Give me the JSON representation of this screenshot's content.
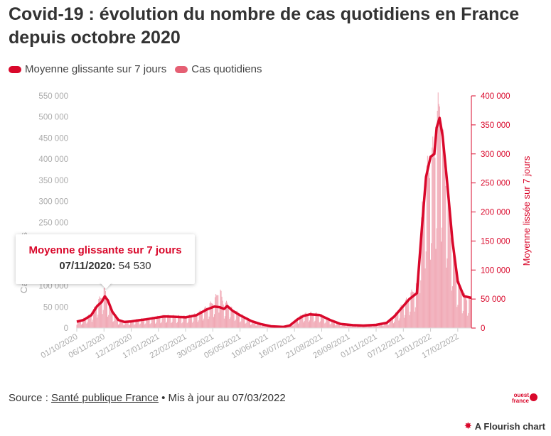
{
  "title": "Covid-19 : évolution du nombre de cas quotidiens en France depuis octobre 2020",
  "legend": {
    "moving_average": "Moyenne glissante sur 7 jours",
    "daily_cases": "Cas quotidiens"
  },
  "tooltip": {
    "series": "Moyenne glissante sur 7 jours",
    "date": "07/11/2020:",
    "value": "54 530"
  },
  "source": {
    "prefix": "Source : ",
    "link": "Santé publique France",
    "suffix": " • Mis à jour au 07/03/2022"
  },
  "logo": {
    "line1": "ouest",
    "line2": "france"
  },
  "credit": "A Flourish chart",
  "colors": {
    "line": "#d9082b",
    "bars": "#f0a5b2",
    "axis_right": "#d9082b",
    "axis_left": "#aaaaaa"
  },
  "chart_data": {
    "type": "bar",
    "x_dates": [
      "01/10/2020",
      "06/11/2020",
      "12/12/2020",
      "17/01/2021",
      "22/02/2021",
      "30/03/2021",
      "05/05/2021",
      "10/06/2021",
      "16/07/2021",
      "21/08/2021",
      "26/09/2021",
      "01/11/2021",
      "07/12/2021",
      "12/01/2022",
      "17/02/2022"
    ],
    "y_left": {
      "label": "Cas quotidiens",
      "range": [
        0,
        550000
      ],
      "ticks": [
        "0",
        "50 000",
        "100 000",
        "150 000",
        "200 000",
        "250 000",
        "300 000",
        "350 000",
        "400 000",
        "450 000",
        "500 000",
        "550 000"
      ]
    },
    "y_right": {
      "label": "Moyenne lissée sur 7 jours",
      "range": [
        0,
        400000
      ],
      "ticks": [
        "0",
        "50 000",
        "100 000",
        "150 000",
        "200 000",
        "250 000",
        "300 000",
        "350 000",
        "400 000"
      ]
    },
    "grid": false,
    "series": [
      {
        "name": "Moyenne glissante sur 7 jours",
        "type": "line",
        "axis": "right",
        "points": [
          [
            "2020-10-01",
            11000
          ],
          [
            "2020-10-10",
            14000
          ],
          [
            "2020-10-20",
            22000
          ],
          [
            "2020-10-28",
            38000
          ],
          [
            "2020-11-03",
            45000
          ],
          [
            "2020-11-07",
            54530
          ],
          [
            "2020-11-11",
            48000
          ],
          [
            "2020-11-17",
            28000
          ],
          [
            "2020-11-25",
            14000
          ],
          [
            "2020-12-03",
            10500
          ],
          [
            "2020-12-12",
            11500
          ],
          [
            "2020-12-22",
            13500
          ],
          [
            "2021-01-01",
            15000
          ],
          [
            "2021-01-12",
            17500
          ],
          [
            "2021-01-25",
            20000
          ],
          [
            "2021-02-08",
            19500
          ],
          [
            "2021-02-22",
            18500
          ],
          [
            "2021-03-08",
            22000
          ],
          [
            "2021-03-22",
            32000
          ],
          [
            "2021-04-01",
            37000
          ],
          [
            "2021-04-08",
            36000
          ],
          [
            "2021-04-14",
            33000
          ],
          [
            "2021-04-18",
            38000
          ],
          [
            "2021-04-25",
            30000
          ],
          [
            "2021-05-05",
            22000
          ],
          [
            "2021-05-20",
            12000
          ],
          [
            "2021-06-01",
            7000
          ],
          [
            "2021-06-15",
            3000
          ],
          [
            "2021-07-01",
            2000
          ],
          [
            "2021-07-10",
            4500
          ],
          [
            "2021-07-20",
            15000
          ],
          [
            "2021-07-28",
            21000
          ],
          [
            "2021-08-05",
            23500
          ],
          [
            "2021-08-18",
            22500
          ],
          [
            "2021-09-01",
            14000
          ],
          [
            "2021-09-15",
            7000
          ],
          [
            "2021-10-01",
            5000
          ],
          [
            "2021-10-15",
            4300
          ],
          [
            "2021-11-01",
            5500
          ],
          [
            "2021-11-15",
            9000
          ],
          [
            "2021-11-25",
            20000
          ],
          [
            "2021-12-05",
            35000
          ],
          [
            "2021-12-15",
            50000
          ],
          [
            "2021-12-25",
            60000
          ],
          [
            "2022-01-01",
            180000
          ],
          [
            "2022-01-06",
            260000
          ],
          [
            "2022-01-12",
            295000
          ],
          [
            "2022-01-17",
            300000
          ],
          [
            "2022-01-20",
            345000
          ],
          [
            "2022-01-24",
            362000
          ],
          [
            "2022-01-28",
            330000
          ],
          [
            "2022-02-03",
            250000
          ],
          [
            "2022-02-10",
            150000
          ],
          [
            "2022-02-17",
            80000
          ],
          [
            "2022-02-25",
            55000
          ],
          [
            "2022-03-07",
            52000
          ]
        ]
      },
      {
        "name": "Cas quotidiens",
        "type": "bar",
        "axis": "left",
        "points": [
          [
            "2020-10-01",
            14000
          ],
          [
            "2020-10-10",
            20000
          ],
          [
            "2020-10-20",
            30000
          ],
          [
            "2020-10-28",
            55000
          ],
          [
            "2020-11-03",
            70000
          ],
          [
            "2020-11-07",
            86000
          ],
          [
            "2020-11-11",
            60000
          ],
          [
            "2020-11-17",
            35000
          ],
          [
            "2020-11-25",
            18000
          ],
          [
            "2020-12-03",
            14000
          ],
          [
            "2020-12-12",
            15000
          ],
          [
            "2020-12-22",
            19000
          ],
          [
            "2021-01-01",
            20000
          ],
          [
            "2021-01-12",
            23000
          ],
          [
            "2021-01-25",
            27000
          ],
          [
            "2021-02-08",
            26000
          ],
          [
            "2021-02-22",
            25000
          ],
          [
            "2021-03-08",
            30000
          ],
          [
            "2021-03-22",
            45000
          ],
          [
            "2021-04-01",
            60000
          ],
          [
            "2021-04-08",
            85000
          ],
          [
            "2021-04-14",
            50000
          ],
          [
            "2021-04-18",
            55000
          ],
          [
            "2021-04-25",
            40000
          ],
          [
            "2021-05-05",
            30000
          ],
          [
            "2021-05-20",
            16000
          ],
          [
            "2021-06-01",
            9000
          ],
          [
            "2021-06-15",
            4000
          ],
          [
            "2021-07-01",
            2500
          ],
          [
            "2021-07-10",
            6000
          ],
          [
            "2021-07-20",
            22000
          ],
          [
            "2021-07-28",
            30000
          ],
          [
            "2021-08-05",
            33000
          ],
          [
            "2021-08-18",
            30000
          ],
          [
            "2021-09-01",
            19000
          ],
          [
            "2021-09-15",
            9000
          ],
          [
            "2021-10-01",
            6500
          ],
          [
            "2021-10-15",
            5500
          ],
          [
            "2021-11-01",
            7500
          ],
          [
            "2021-11-15",
            12000
          ],
          [
            "2021-11-25",
            27000
          ],
          [
            "2021-12-05",
            48000
          ],
          [
            "2021-12-15",
            68000
          ],
          [
            "2021-12-25",
            95000
          ],
          [
            "2022-01-01",
            250000
          ],
          [
            "2022-01-06",
            330000
          ],
          [
            "2022-01-12",
            360000
          ],
          [
            "2022-01-17",
            390000
          ],
          [
            "2022-01-20",
            430000
          ],
          [
            "2022-01-24",
            500000
          ],
          [
            "2022-01-28",
            410000
          ],
          [
            "2022-02-03",
            300000
          ],
          [
            "2022-02-10",
            180000
          ],
          [
            "2022-02-17",
            100000
          ],
          [
            "2022-02-25",
            70000
          ],
          [
            "2022-03-07",
            60000
          ]
        ]
      }
    ]
  }
}
